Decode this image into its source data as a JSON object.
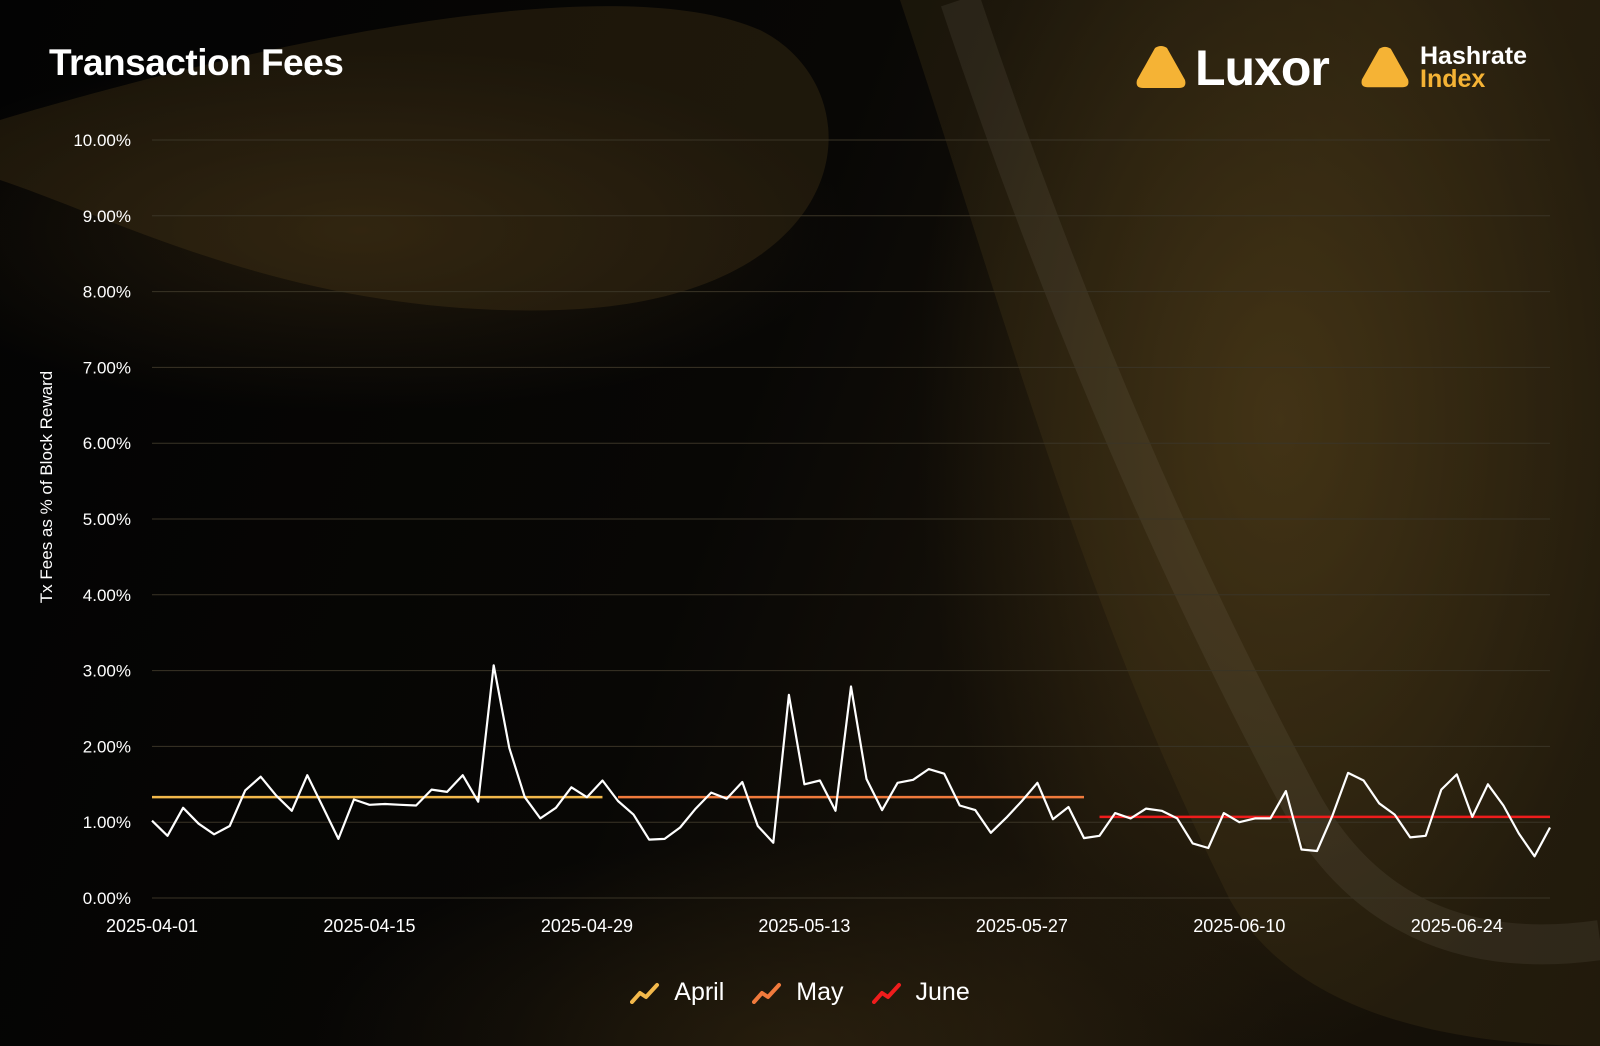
{
  "title": "Transaction Fees",
  "brand": {
    "luxor": "Luxor",
    "hashrate_line1": "Hashrate",
    "hashrate_line2": "Index",
    "accent_color": "#f5b335"
  },
  "colors": {
    "series_line": "#ffffff",
    "april": "#f2b84b",
    "may": "#f07a3c",
    "june": "#ef1c1c",
    "grid": "#3a3426",
    "text": "#ffffff"
  },
  "chart_data": {
    "type": "line",
    "title": "Transaction Fees",
    "xlabel": "",
    "ylabel": "Tx Fees as % of Block Reward",
    "ylim": [
      0,
      10
    ],
    "y_ticks": [
      "10.00%",
      "9.00%",
      "8.00%",
      "7.00%",
      "6.00%",
      "5.00%",
      "4.00%",
      "3.00%",
      "2.00%",
      "1.00%",
      "0.00%"
    ],
    "x_ticks": [
      "2025-04-01",
      "2025-04-15",
      "2025-04-29",
      "2025-05-13",
      "2025-05-27",
      "2025-06-10",
      "2025-06-24"
    ],
    "x_start": "2025-04-01",
    "x_end": "2025-06-30",
    "grid": true,
    "legend_position": "bottom",
    "series": [
      {
        "values": [
          1.02,
          0.82,
          1.19,
          0.98,
          0.84,
          0.95,
          1.42,
          1.6,
          1.35,
          1.15,
          1.62,
          1.2,
          0.78,
          1.3,
          1.23,
          1.24,
          1.23,
          1.22,
          1.43,
          1.4,
          1.62,
          1.27,
          3.07,
          1.98,
          1.33,
          1.05,
          1.19,
          1.46,
          1.33,
          1.55,
          1.28,
          1.1,
          0.77,
          0.78,
          0.93,
          1.18,
          1.39,
          1.31,
          1.53,
          0.95,
          0.73,
          2.68,
          1.5,
          1.55,
          1.15,
          2.79,
          1.57,
          1.16,
          1.52,
          1.56,
          1.7,
          1.64,
          1.22,
          1.16,
          0.86,
          1.06,
          1.28,
          1.52,
          1.04,
          1.2,
          0.79,
          0.82,
          1.12,
          1.05,
          1.18,
          1.15,
          1.05,
          0.72,
          0.66,
          1.12,
          1.0,
          1.05,
          1.05,
          1.41,
          0.64,
          0.62,
          1.09,
          1.65,
          1.55,
          1.25,
          1.1,
          0.8,
          0.82,
          1.43,
          1.63,
          1.07,
          1.5,
          1.22,
          0.85,
          0.55,
          0.93
        ]
      }
    ],
    "monthly_averages": [
      {
        "name": "April",
        "value": 1.33,
        "start": "2025-04-01",
        "end": "2025-04-30"
      },
      {
        "name": "May",
        "value": 1.33,
        "start": "2025-05-01",
        "end": "2025-05-31"
      },
      {
        "name": "June",
        "value": 1.07,
        "start": "2025-06-01",
        "end": "2025-06-30"
      }
    ]
  }
}
